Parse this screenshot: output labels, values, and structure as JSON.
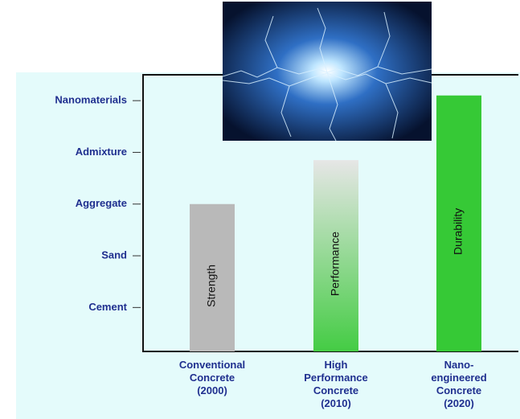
{
  "chart_data": {
    "type": "bar",
    "categories": [
      "Conventional\nConcrete\n(2000)",
      "High\nPerformance\nConcrete\n(2010)",
      "Nano-\nengineered\nConcrete\n(2020)"
    ],
    "values": [
      3,
      3.85,
      5.1
    ],
    "bar_labels": [
      "Strength",
      "Performance",
      "Durability"
    ],
    "colors": [
      "#b9b9b9",
      "#44cc44",
      "#36c936"
    ],
    "ylim": [
      0.15,
      5.5
    ],
    "yticks": [
      {
        "value": 1,
        "label": "Cement"
      },
      {
        "value": 2,
        "label": "Sand"
      },
      {
        "value": 3,
        "label": "Aggregate"
      },
      {
        "value": 4,
        "label": "Admixture"
      },
      {
        "value": 5,
        "label": "Nanomaterials"
      }
    ]
  }
}
